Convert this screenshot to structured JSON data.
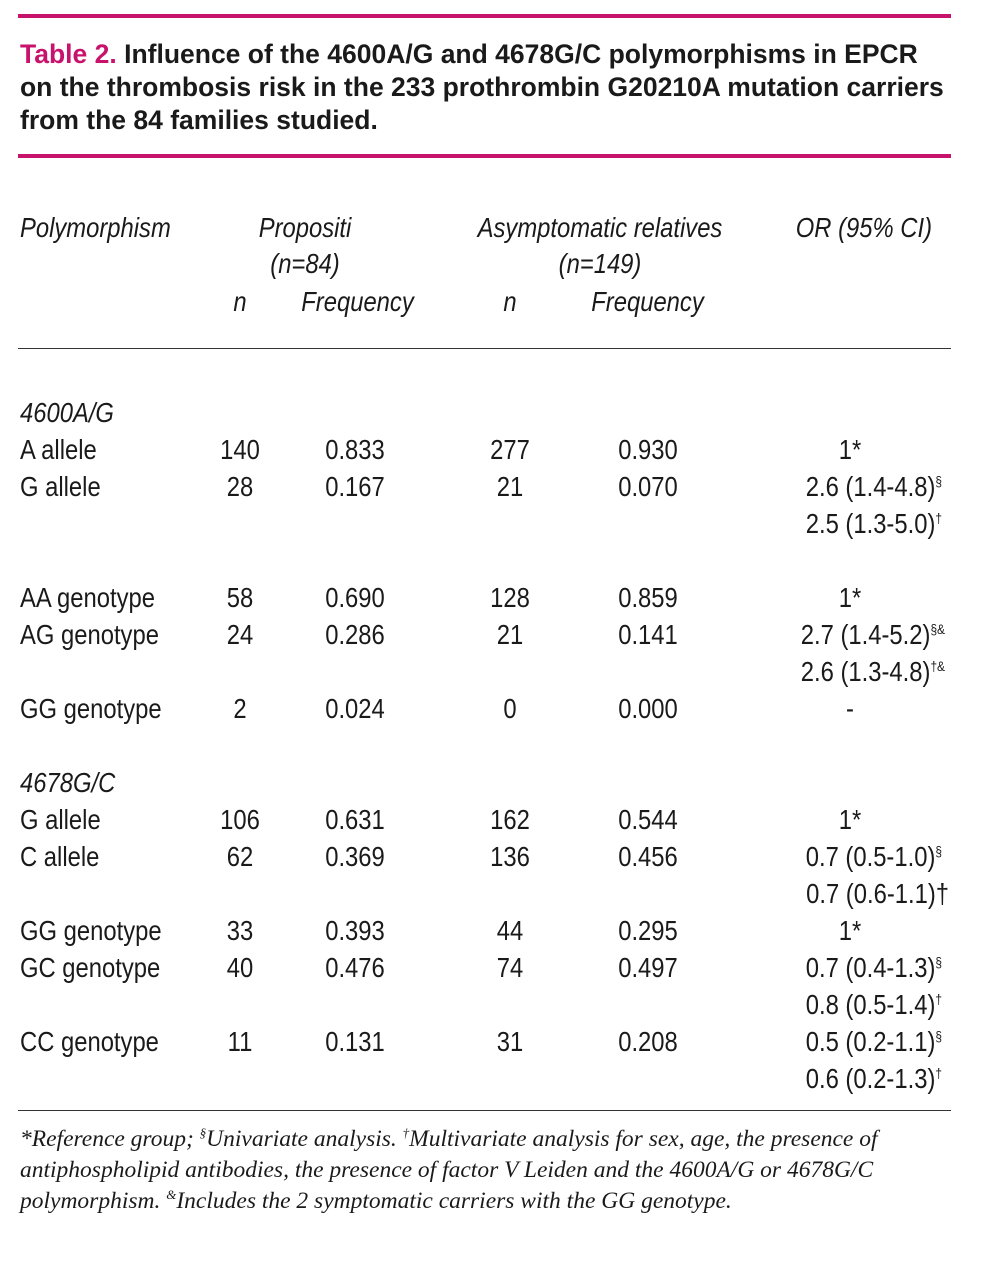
{
  "caption": {
    "label": "Table 2.",
    "text": "Influence of the 4600A/G and 4678G/C polymorphisms in EPCR on the thrombosis risk in the 233 prothrombin G20210A mutation carriers from the 84 families studied."
  },
  "header": {
    "polymorphism": "Polymorphism",
    "propositi": "Propositi",
    "propositi_n": "(n=84)",
    "asymptomatic": "Asymptomatic relatives",
    "asymptomatic_n": "(n=149)",
    "or": "OR (95% CI)",
    "n1": "n",
    "freq1": "Frequency",
    "n2": "n",
    "freq2": "Frequency"
  },
  "groups": {
    "g1": "4600A/G",
    "g2": "4678G/C"
  },
  "rows": {
    "r1": {
      "label": "A allele",
      "n1": "140",
      "f1": "0.833",
      "n2": "277",
      "f2": "0.930",
      "or": "1*"
    },
    "r2": {
      "label": "G allele",
      "n1": "28",
      "f1": "0.167",
      "n2": "21",
      "f2": "0.070",
      "or": "2.6 (1.4-4.8)",
      "or_sup": "§",
      "or2": "2.5 (1.3-5.0)",
      "or2_sup": "†"
    },
    "r3": {
      "label": "AA genotype",
      "n1": "58",
      "f1": "0.690",
      "n2": "128",
      "f2": "0.859",
      "or": "1*"
    },
    "r4": {
      "label": "AG genotype",
      "n1": "24",
      "f1": "0.286",
      "n2": "21",
      "f2": "0.141",
      "or": "2.7 (1.4-5.2)",
      "or_sup": "§&",
      "or2": "2.6 (1.3-4.8)",
      "or2_sup": "†&"
    },
    "r5": {
      "label": "GG genotype",
      "n1": "2",
      "f1": "0.024",
      "n2": "0",
      "f2": "0.000",
      "or": "-"
    },
    "r6": {
      "label": "G allele",
      "n1": "106",
      "f1": "0.631",
      "n2": "162",
      "f2": "0.544",
      "or": "1*"
    },
    "r7": {
      "label": "C allele",
      "n1": "62",
      "f1": "0.369",
      "n2": "136",
      "f2": "0.456",
      "or": "0.7 (0.5-1.0)",
      "or_sup": "§",
      "or2": "0.7 (0.6-1.1)†"
    },
    "r8": {
      "label": "GG genotype",
      "n1": "33",
      "f1": "0.393",
      "n2": "44",
      "f2": "0.295",
      "or": "1*"
    },
    "r9": {
      "label": "GC genotype",
      "n1": "40",
      "f1": "0.476",
      "n2": "74",
      "f2": "0.497",
      "or": "0.7 (0.4-1.3)",
      "or_sup": "§",
      "or2": "0.8 (0.5-1.4)",
      "or2_sup": "†"
    },
    "r10": {
      "label": "CC genotype",
      "n1": "11",
      "f1": "0.131",
      "n2": "31",
      "f2": "0.208",
      "or": "0.5 (0.2-1.1)",
      "or_sup": "§",
      "or2": "0.6 (0.2-1.3)",
      "or2_sup": "†"
    }
  },
  "footnote": {
    "p1": "*Reference group; ",
    "s1": "§",
    "p2": "Univariate analysis. ",
    "s2": "†",
    "p3": "Multivariate analysis for sex, age, the presence of antiphospholipid antibodies, the presence of factor V Leiden and the 4600A/G or 4678G/C polymorphism. ",
    "s3": "&",
    "p4": "Includes the 2 symptomatic carriers with the GG genotype."
  }
}
